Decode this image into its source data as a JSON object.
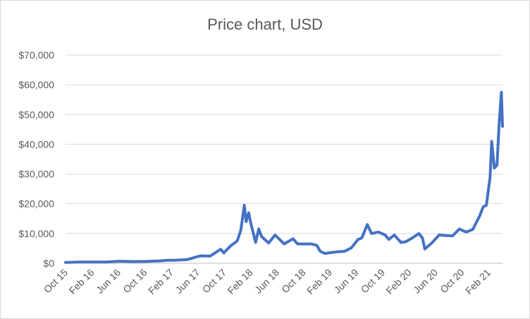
{
  "chart_data": {
    "type": "line",
    "title": "Price chart, USD",
    "xlabel": "",
    "ylabel": "",
    "ylim": [
      0,
      70000
    ],
    "yticks": [
      "$0",
      "$10,000",
      "$20,000",
      "$30,000",
      "$40,000",
      "$50,000",
      "$60,000",
      "$70,000"
    ],
    "xticks": [
      "Oct 15",
      "Feb 16",
      "Jun 16",
      "Oct 16",
      "Feb 17",
      "Jun 17",
      "Oct 17",
      "Feb 18",
      "Jun 18",
      "Oct 18",
      "Feb 19",
      "Jun 19",
      "Oct 19",
      "Feb 20",
      "Jun 20",
      "Oct 20",
      "Feb 21"
    ],
    "grid": true,
    "legend": "none",
    "series": [
      {
        "color": "#4472c4",
        "x": [
          "2015-10-01",
          "2015-12-01",
          "2016-02-01",
          "2016-04-01",
          "2016-06-01",
          "2016-08-01",
          "2016-10-01",
          "2016-12-01",
          "2017-01-05",
          "2017-02-01",
          "2017-04-01",
          "2017-06-01",
          "2017-07-15",
          "2017-09-01",
          "2017-09-15",
          "2017-10-15",
          "2017-11-15",
          "2017-12-01",
          "2017-12-17",
          "2017-12-25",
          "2018-01-06",
          "2018-01-15",
          "2018-02-06",
          "2018-02-20",
          "2018-03-05",
          "2018-04-06",
          "2018-05-05",
          "2018-06-15",
          "2018-07-25",
          "2018-08-15",
          "2018-09-15",
          "2018-10-15",
          "2018-11-10",
          "2018-11-25",
          "2018-12-15",
          "2019-01-15",
          "2019-02-15",
          "2019-03-15",
          "2019-04-15",
          "2019-05-15",
          "2019-06-01",
          "2019-06-26",
          "2019-07-15",
          "2019-08-15",
          "2019-09-15",
          "2019-10-01",
          "2019-10-26",
          "2019-11-25",
          "2019-12-15",
          "2020-01-15",
          "2020-02-14",
          "2020-03-01",
          "2020-03-12",
          "2020-04-15",
          "2020-05-15",
          "2020-06-15",
          "2020-07-15",
          "2020-08-15",
          "2020-09-15",
          "2020-10-15",
          "2020-11-15",
          "2020-12-01",
          "2020-12-15",
          "2021-01-01",
          "2021-01-08",
          "2021-01-20",
          "2021-02-01",
          "2021-02-10",
          "2021-02-21",
          "2021-02-26"
        ],
        "y": [
          250,
          400,
          400,
          420,
          700,
          580,
          620,
          800,
          1000,
          1000,
          1200,
          2500,
          2400,
          4700,
          3500,
          5800,
          7500,
          11000,
          19500,
          14000,
          17000,
          13500,
          7000,
          11500,
          9000,
          6800,
          9500,
          6500,
          8200,
          6500,
          6500,
          6500,
          6000,
          4000,
          3300,
          3600,
          3900,
          4000,
          5200,
          8000,
          8500,
          13000,
          10000,
          10500,
          9500,
          8000,
          9500,
          7000,
          7200,
          8500,
          10000,
          8500,
          4800,
          7000,
          9500,
          9300,
          9200,
          11500,
          10500,
          11400,
          16000,
          19000,
          19500,
          29000,
          41000,
          32000,
          33000,
          46000,
          57500,
          46000
        ]
      }
    ]
  }
}
